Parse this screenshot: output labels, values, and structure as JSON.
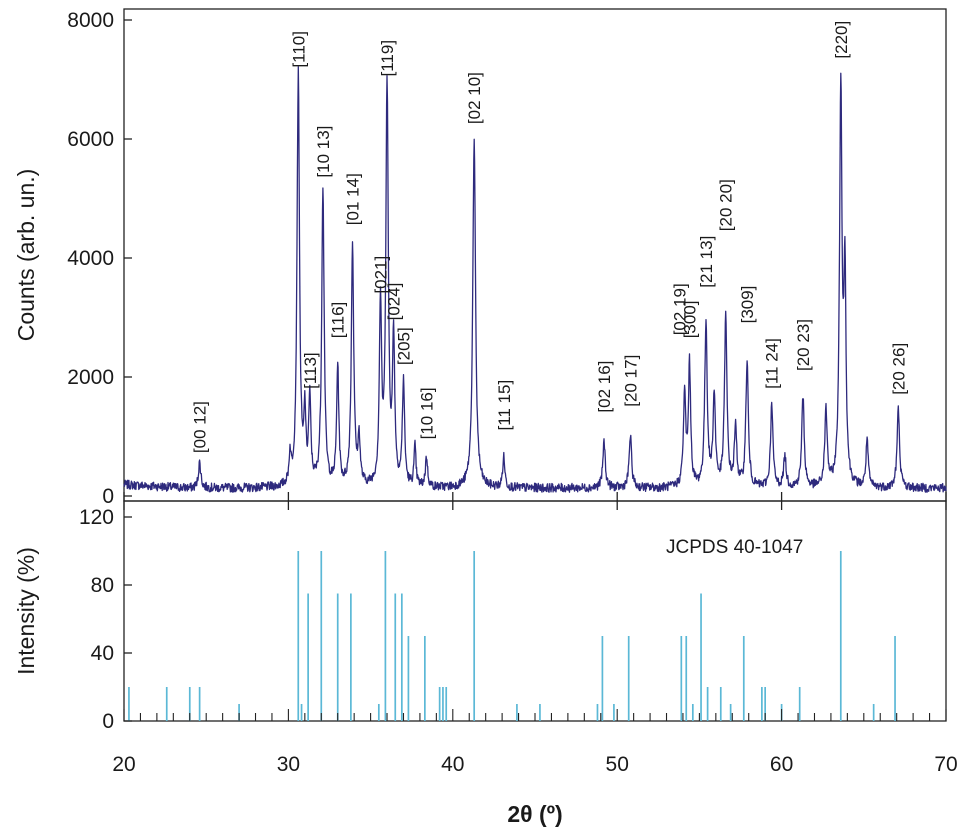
{
  "chart_data": [
    {
      "type": "line",
      "panel": "top",
      "title": "",
      "ylabel": "Counts (arb. un.)",
      "xlim": [
        20,
        70
      ],
      "ylim": [
        0,
        8000
      ],
      "x_ticks": [
        20,
        30,
        40,
        50,
        60,
        70
      ],
      "y_ticks": [
        "0",
        "2000",
        "4000",
        "6000",
        "8000"
      ],
      "grid": false,
      "colors": {
        "line": "#2e2a7d"
      },
      "baseline": 130,
      "peaks": [
        {
          "x": 24.6,
          "y": 560,
          "w": 0.09
        },
        {
          "x": 30.1,
          "y": 600,
          "w": 0.07
        },
        {
          "x": 30.6,
          "y": 7050,
          "w": 0.09
        },
        {
          "x": 31.0,
          "y": 1250,
          "w": 0.07
        },
        {
          "x": 31.3,
          "y": 1550,
          "w": 0.08
        },
        {
          "x": 32.1,
          "y": 5150,
          "w": 0.09
        },
        {
          "x": 33.0,
          "y": 2150,
          "w": 0.08
        },
        {
          "x": 33.9,
          "y": 4200,
          "w": 0.09
        },
        {
          "x": 34.3,
          "y": 900,
          "w": 0.08
        },
        {
          "x": 35.6,
          "y": 3150,
          "w": 0.08
        },
        {
          "x": 36.0,
          "y": 6800,
          "w": 0.09
        },
        {
          "x": 36.4,
          "y": 2600,
          "w": 0.08
        },
        {
          "x": 37.0,
          "y": 1900,
          "w": 0.08
        },
        {
          "x": 37.7,
          "y": 800,
          "w": 0.07
        },
        {
          "x": 38.4,
          "y": 640,
          "w": 0.08
        },
        {
          "x": 41.3,
          "y": 5950,
          "w": 0.1
        },
        {
          "x": 43.1,
          "y": 640,
          "w": 0.08
        },
        {
          "x": 49.2,
          "y": 900,
          "w": 0.09
        },
        {
          "x": 50.8,
          "y": 1000,
          "w": 0.09
        },
        {
          "x": 54.1,
          "y": 1650,
          "w": 0.09
        },
        {
          "x": 54.4,
          "y": 2150,
          "w": 0.08
        },
        {
          "x": 55.4,
          "y": 2900,
          "w": 0.09
        },
        {
          "x": 55.9,
          "y": 1650,
          "w": 0.09
        },
        {
          "x": 56.6,
          "y": 3000,
          "w": 0.09
        },
        {
          "x": 57.2,
          "y": 1100,
          "w": 0.09
        },
        {
          "x": 57.9,
          "y": 2250,
          "w": 0.09
        },
        {
          "x": 59.4,
          "y": 1500,
          "w": 0.09
        },
        {
          "x": 60.2,
          "y": 650,
          "w": 0.09
        },
        {
          "x": 61.3,
          "y": 1650,
          "w": 0.09
        },
        {
          "x": 62.7,
          "y": 1400,
          "w": 0.09
        },
        {
          "x": 63.6,
          "y": 6800,
          "w": 0.09
        },
        {
          "x": 63.85,
          "y": 3600,
          "w": 0.08
        },
        {
          "x": 65.2,
          "y": 950,
          "w": 0.08
        },
        {
          "x": 67.1,
          "y": 1450,
          "w": 0.09
        }
      ],
      "annotations": [
        {
          "text": "[00 12]",
          "x": 24.6,
          "y": 620
        },
        {
          "text": "[110]",
          "x": 30.6,
          "y": 7100
        },
        {
          "text": "[113]",
          "x": 31.3,
          "y": 1700
        },
        {
          "text": "[10 13]",
          "x": 32.1,
          "y": 5250
        },
        {
          "text": "[116]",
          "x": 33.0,
          "y": 2550
        },
        {
          "text": "[01 14]",
          "x": 33.9,
          "y": 4450
        },
        {
          "text": "[021]",
          "x": 35.6,
          "y": 3300
        },
        {
          "text": "[119]",
          "x": 36.0,
          "y": 6950
        },
        {
          "text": "[024]",
          "x": 36.4,
          "y": 2850
        },
        {
          "text": "[205]",
          "x": 37.0,
          "y": 2100
        },
        {
          "text": "[10 16]",
          "x": 38.4,
          "y": 850
        },
        {
          "text": "[02 10]",
          "x": 41.3,
          "y": 6150
        },
        {
          "text": "[11 15]",
          "x": 43.1,
          "y": 1000
        },
        {
          "text": "[02 16]",
          "x": 49.2,
          "y": 1300
        },
        {
          "text": "[20 17]",
          "x": 50.8,
          "y": 1400
        },
        {
          "text": "[02 19]",
          "x": 53.8,
          "y": 2600
        },
        {
          "text": "[300]",
          "x": 54.4,
          "y": 2550
        },
        {
          "text": "[21 13]",
          "x": 55.4,
          "y": 3400
        },
        {
          "text": "[20 20]",
          "x": 56.6,
          "y": 4350
        },
        {
          "text": "[309]",
          "x": 57.9,
          "y": 2800
        },
        {
          "text": "[11 24]",
          "x": 59.4,
          "y": 1700
        },
        {
          "text": "[20 23]",
          "x": 61.3,
          "y": 2000
        },
        {
          "text": "[220]",
          "x": 63.6,
          "y": 7250
        },
        {
          "text": "[20 26]",
          "x": 67.1,
          "y": 1600
        }
      ]
    },
    {
      "type": "bar",
      "panel": "bottom",
      "title": "",
      "xlabel": "2θ (º)",
      "ylabel": "Intensity (%)",
      "xlim": [
        20,
        70
      ],
      "ylim": [
        0,
        120
      ],
      "x_ticks": [
        "20",
        "30",
        "40",
        "50",
        "60",
        "70"
      ],
      "y_ticks": [
        "0",
        "40",
        "80",
        "120"
      ],
      "grid": false,
      "colors": {
        "bars": "#5bb8d6"
      },
      "reference_label": "JCPDS 40-1047",
      "x": [
        20.3,
        22.6,
        24.0,
        24.6,
        27.0,
        30.6,
        30.8,
        31.2,
        32.0,
        33.0,
        33.8,
        35.5,
        35.9,
        36.5,
        36.9,
        37.3,
        38.3,
        39.2,
        39.4,
        39.6,
        41.3,
        43.9,
        45.3,
        48.8,
        49.1,
        49.8,
        50.7,
        53.9,
        54.2,
        54.6,
        55.1,
        55.5,
        56.3,
        56.9,
        57.7,
        58.8,
        59.0,
        60.0,
        61.1,
        63.6,
        65.6,
        66.9
      ],
      "values": [
        20,
        20,
        20,
        20,
        10,
        100,
        10,
        75,
        100,
        75,
        75,
        10,
        100,
        75,
        75,
        50,
        50,
        20,
        20,
        20,
        100,
        10,
        10,
        10,
        50,
        10,
        50,
        50,
        50,
        10,
        75,
        20,
        20,
        10,
        50,
        20,
        20,
        10,
        20,
        100,
        10,
        50
      ]
    }
  ]
}
